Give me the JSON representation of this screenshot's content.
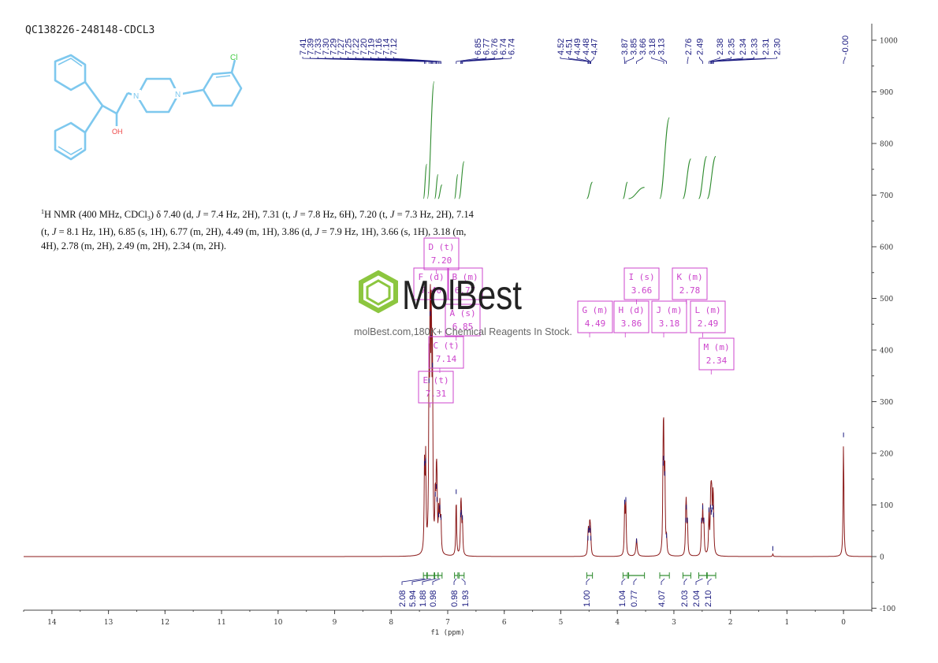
{
  "sample_id": "QC138226-248148-CDCL3",
  "nmr_description": {
    "nucleus_superscript": "1",
    "prefix": "H NMR (400 MHz, CDCl",
    "solvent_subscript": "3",
    "delta_intro": ") δ 7.40 (d, ",
    "segments": [
      {
        "j": "J",
        "t": " = 7.4 Hz, 2H), 7.31 (t, "
      },
      {
        "j": "J",
        "t": " = 7.8 Hz, 6H), 7.20 (t, "
      },
      {
        "j": "J",
        "t": " = 7.3 Hz, 2H), 7.14 (t, "
      },
      {
        "j": "J",
        "t": " = 8.1 Hz, 1H), 6.85 (s, 1H), 6.77 (m, 2H), 4.49 (m, 1H), 3.86 (d, "
      },
      {
        "j": "J",
        "t": " = 7.9 Hz, 1H), 3.66 (s, 1H), 3.18 (m, 4H), 2.78 (m, 2H), 2.49 (m, 2H), 2.34 (m, 2H)."
      }
    ]
  },
  "watermark": {
    "logo_text": "MolBest",
    "url_text": "molBest.com,180K+ Chemical Reagents In Stock."
  },
  "structure_labels": {
    "cl": "Cl",
    "n1": "N",
    "n2": "N",
    "oh": "OH"
  },
  "colors": {
    "spectrum": "#8b1a1a",
    "integral": "#2e8b2e",
    "label": "#1a1a80",
    "multiplet_box": "#cc44cc",
    "structure": "#7ec8ee",
    "cl_atom": "#44cc44",
    "oh_atom": "#ee4444"
  },
  "chart_data": {
    "type": "line",
    "title": "",
    "xlabel": "f1 (ppm)",
    "ylabel": "",
    "xlim": [
      14.5,
      -0.5
    ],
    "ylim": [
      -100,
      1000
    ],
    "x_axis_reversed": true,
    "x_ticks": [
      14,
      13,
      12,
      11,
      10,
      9,
      8,
      7,
      6,
      5,
      4,
      3,
      2,
      1,
      0
    ],
    "y_ticks": [
      -100,
      0,
      100,
      200,
      300,
      400,
      500,
      600,
      700,
      800,
      900,
      1000
    ],
    "peak_labels": [
      "7.41",
      "7.39",
      "7.33",
      "7.30",
      "7.29",
      "7.27",
      "7.25",
      "7.22",
      "7.20",
      "7.19",
      "7.16",
      "7.14",
      "7.12",
      "6.85",
      "6.77",
      "6.76",
      "6.74",
      "6.74",
      "4.52",
      "4.51",
      "4.49",
      "4.48",
      "4.47",
      "3.87",
      "3.85",
      "3.66",
      "3.18",
      "3.13",
      "2.76",
      "2.49",
      "2.38",
      "2.35",
      "2.34",
      "2.33",
      "2.31",
      "2.30",
      "-0.00"
    ],
    "peaks": [
      {
        "x": 7.41,
        "y": 170
      },
      {
        "x": 7.39,
        "y": 175
      },
      {
        "x": 7.33,
        "y": 330
      },
      {
        "x": 7.31,
        "y": 460
      },
      {
        "x": 7.29,
        "y": 420
      },
      {
        "x": 7.27,
        "y": 360
      },
      {
        "x": 7.22,
        "y": 110
      },
      {
        "x": 7.2,
        "y": 125
      },
      {
        "x": 7.19,
        "y": 100
      },
      {
        "x": 7.16,
        "y": 70
      },
      {
        "x": 7.14,
        "y": 85
      },
      {
        "x": 7.12,
        "y": 65
      },
      {
        "x": 6.85,
        "y": 115
      },
      {
        "x": 6.77,
        "y": 70
      },
      {
        "x": 6.76,
        "y": 75
      },
      {
        "x": 6.74,
        "y": 65
      },
      {
        "x": 4.52,
        "y": 25
      },
      {
        "x": 4.51,
        "y": 40
      },
      {
        "x": 4.49,
        "y": 45
      },
      {
        "x": 4.48,
        "y": 40
      },
      {
        "x": 4.47,
        "y": 25
      },
      {
        "x": 3.87,
        "y": 95
      },
      {
        "x": 3.85,
        "y": 100
      },
      {
        "x": 3.66,
        "y": 20
      },
      {
        "x": 3.19,
        "y": 170
      },
      {
        "x": 3.18,
        "y": 180
      },
      {
        "x": 3.16,
        "y": 150
      },
      {
        "x": 3.13,
        "y": 30
      },
      {
        "x": 2.79,
        "y": 60
      },
      {
        "x": 2.78,
        "y": 85
      },
      {
        "x": 2.76,
        "y": 60
      },
      {
        "x": 2.51,
        "y": 60
      },
      {
        "x": 2.49,
        "y": 85
      },
      {
        "x": 2.47,
        "y": 60
      },
      {
        "x": 2.38,
        "y": 80
      },
      {
        "x": 2.35,
        "y": 85
      },
      {
        "x": 2.34,
        "y": 75
      },
      {
        "x": 2.33,
        "y": 80
      },
      {
        "x": 2.31,
        "y": 85
      },
      {
        "x": 2.3,
        "y": 70
      },
      {
        "x": 1.25,
        "y": 5
      },
      {
        "x": 0.0,
        "y": 225
      }
    ],
    "integrals": [
      {
        "from": 7.43,
        "to": 7.37,
        "value": "2.08"
      },
      {
        "from": 7.36,
        "to": 7.24,
        "value": "5.94"
      },
      {
        "from": 7.23,
        "to": 7.17,
        "value": "1.88"
      },
      {
        "from": 7.17,
        "to": 7.1,
        "value": "0.98"
      },
      {
        "from": 6.88,
        "to": 6.82,
        "value": "0.98"
      },
      {
        "from": 6.8,
        "to": 6.71,
        "value": "1.93"
      },
      {
        "from": 4.54,
        "to": 4.44,
        "value": "1.00"
      },
      {
        "from": 3.9,
        "to": 3.82,
        "value": "1.04"
      },
      {
        "from": 3.8,
        "to": 3.52,
        "value": "0.77"
      },
      {
        "from": 3.25,
        "to": 3.08,
        "value": "4.07"
      },
      {
        "from": 2.84,
        "to": 2.7,
        "value": "2.03"
      },
      {
        "from": 2.56,
        "to": 2.42,
        "value": "2.04"
      },
      {
        "from": 2.41,
        "to": 2.26,
        "value": "2.10"
      }
    ],
    "integral_curves": [
      {
        "from": 7.43,
        "to": 7.37,
        "top": 760
      },
      {
        "from": 7.36,
        "to": 7.24,
        "top": 920
      },
      {
        "from": 7.23,
        "to": 7.17,
        "top": 740
      },
      {
        "from": 7.17,
        "to": 7.1,
        "top": 720
      },
      {
        "from": 6.88,
        "to": 6.82,
        "top": 740
      },
      {
        "from": 6.8,
        "to": 6.71,
        "top": 765
      },
      {
        "from": 4.54,
        "to": 4.44,
        "top": 725
      },
      {
        "from": 3.9,
        "to": 3.82,
        "top": 725
      },
      {
        "from": 3.8,
        "to": 3.52,
        "top": 715
      },
      {
        "from": 3.25,
        "to": 3.08,
        "top": 850
      },
      {
        "from": 2.84,
        "to": 2.7,
        "top": 770
      },
      {
        "from": 2.56,
        "to": 2.42,
        "top": 775
      },
      {
        "from": 2.41,
        "to": 2.26,
        "top": 775
      }
    ],
    "multiplets": [
      {
        "letter": "D",
        "type": "t",
        "shift": "7.20",
        "anchor": 7.2,
        "level": 590
      },
      {
        "letter": "F",
        "type": "d",
        "shift": "7.40",
        "anchor": 7.4,
        "level": 520
      },
      {
        "letter": "B",
        "type": "m",
        "shift": "6.77",
        "anchor": 6.77,
        "level": 520
      },
      {
        "letter": "A",
        "type": "s",
        "shift": "6.85",
        "anchor": 6.85,
        "level": 440
      },
      {
        "letter": "C",
        "type": "t",
        "shift": "7.14",
        "anchor": 7.14,
        "level": 395
      },
      {
        "letter": "E",
        "type": "t",
        "shift": "7.31",
        "anchor": 7.31,
        "level": 330
      },
      {
        "letter": "I",
        "type": "s",
        "shift": "3.66",
        "anchor": 3.66,
        "level": 520
      },
      {
        "letter": "K",
        "type": "m",
        "shift": "2.78",
        "anchor": 2.78,
        "level": 520
      },
      {
        "letter": "G",
        "type": "m",
        "shift": "4.49",
        "anchor": 4.49,
        "level": 440
      },
      {
        "letter": "H",
        "type": "d",
        "shift": "3.86",
        "anchor": 3.86,
        "level": 440
      },
      {
        "letter": "J",
        "type": "m",
        "shift": "3.18",
        "anchor": 3.18,
        "level": 440
      },
      {
        "letter": "L",
        "type": "m",
        "shift": "2.49",
        "anchor": 2.49,
        "level": 440
      },
      {
        "letter": "M",
        "type": "m",
        "shift": "2.34",
        "anchor": 2.34,
        "level": 365
      }
    ]
  }
}
